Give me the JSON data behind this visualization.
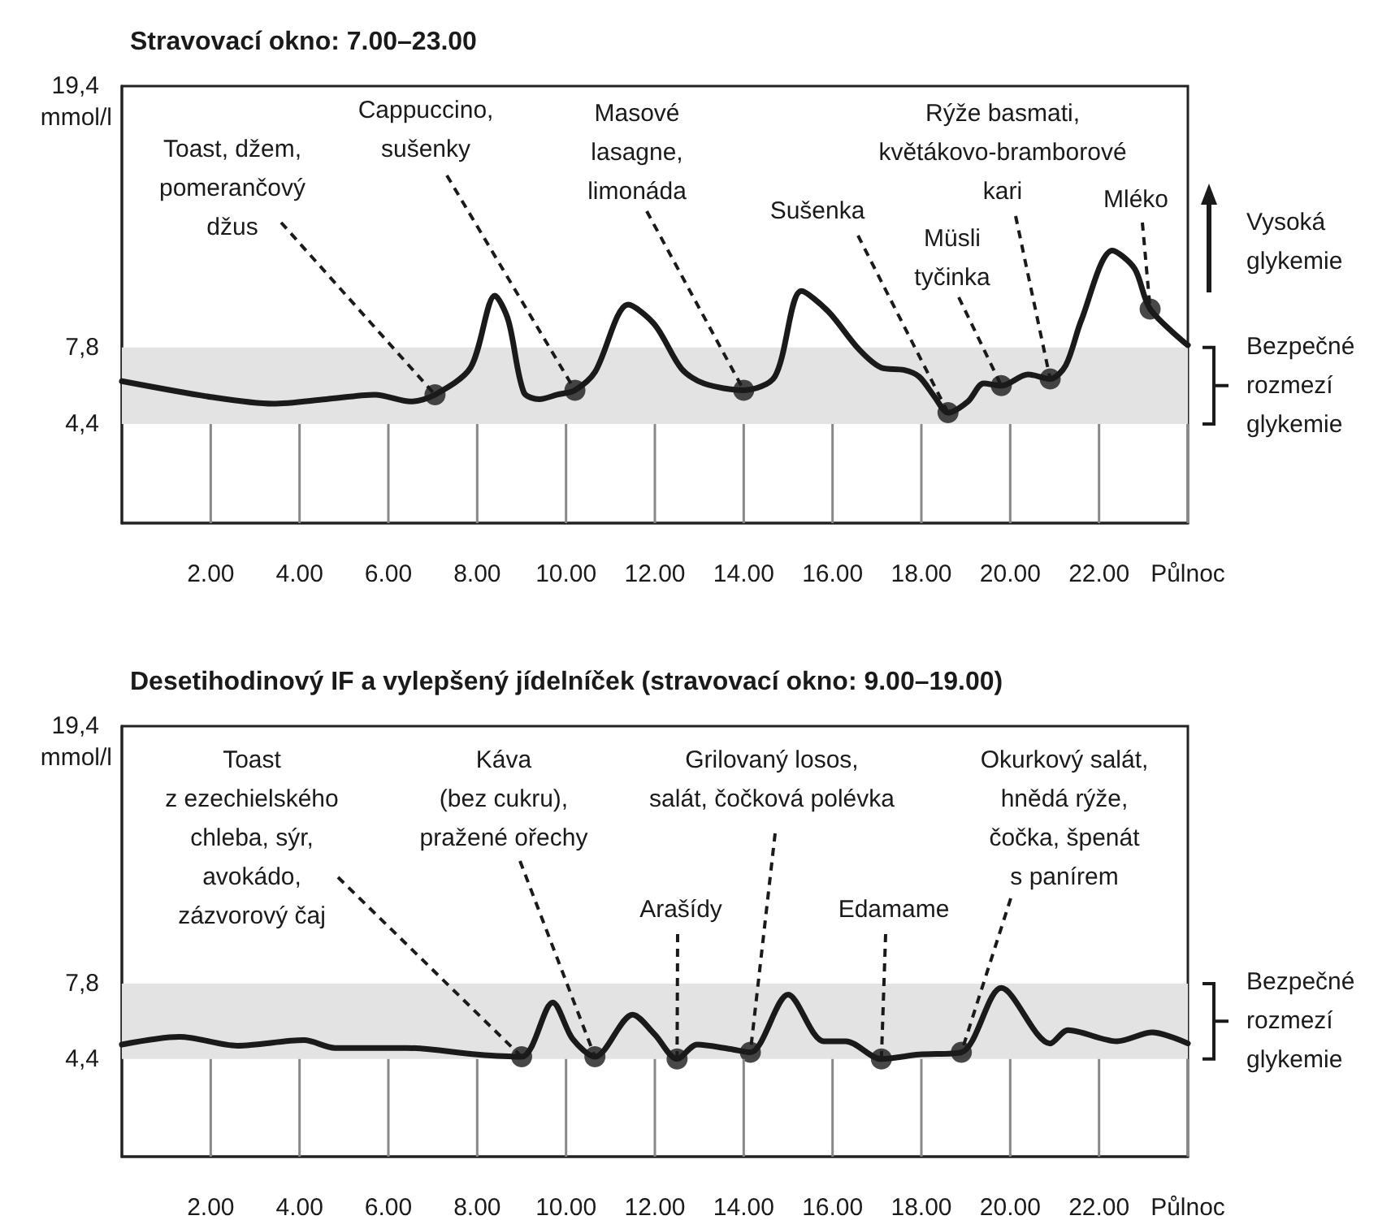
{
  "chart_data": [
    {
      "type": "line",
      "title": "Stravovací okno: 7.00–23.00",
      "ylabel": "mmol/l",
      "xlim": [
        0,
        24
      ],
      "xticks": [
        {
          "value": 2,
          "label": "2.00"
        },
        {
          "value": 4,
          "label": "4.00"
        },
        {
          "value": 6,
          "label": "6.00"
        },
        {
          "value": 8,
          "label": "8.00"
        },
        {
          "value": 10,
          "label": "10.00"
        },
        {
          "value": 12,
          "label": "12.00"
        },
        {
          "value": 14,
          "label": "14.00"
        },
        {
          "value": 16,
          "label": "16.00"
        },
        {
          "value": 18,
          "label": "18.00"
        },
        {
          "value": 20,
          "label": "20.00"
        },
        {
          "value": 22,
          "label": "22.00"
        },
        {
          "value": 24,
          "label": "Půlnoc"
        }
      ],
      "ylim": [
        0,
        19.4
      ],
      "yticks": [
        {
          "value": 4.4,
          "label": "4,4"
        },
        {
          "value": 7.8,
          "label": "7,8"
        },
        {
          "value": 19.4,
          "label": "19,4"
        }
      ],
      "line_style": "solid",
      "bands": [
        {
          "axis": "y",
          "from": 4.4,
          "to": 7.8,
          "label": "Bezpečné\nrozmezí\nglykemie",
          "color": "#e3e3e3"
        }
      ],
      "annotations": [
        {
          "text": "Toast, džem,\npomerančový\ndžus",
          "x": 7.05,
          "y": 5.7
        },
        {
          "text": "Cappuccino,\nsušenky",
          "x": 10.2,
          "y": 5.9
        },
        {
          "text": "Masové\nlasagne,\nlimonáda",
          "x": 14.0,
          "y": 5.9
        },
        {
          "text": "Sušenka",
          "x": 18.6,
          "y": 4.9
        },
        {
          "text": "Müsli\ntyčinka",
          "x": 19.8,
          "y": 6.1
        },
        {
          "text": "Rýže basmati,\nkvětákovo-bramborové\nkari",
          "x": 20.9,
          "y": 6.4
        },
        {
          "text": "Mléko",
          "x": 23.15,
          "y": 9.5
        },
        "Vysoká\nglykemie"
      ],
      "series": [
        {
          "marker": "none",
          "color": "#1a1a1a",
          "x": [
            0,
            2,
            3.4,
            4.6,
            5.7,
            6.5,
            7.05,
            7.85,
            8.4,
            8.7,
            9.05,
            9.4,
            9.8,
            10.2,
            10.65,
            11.4,
            12.0,
            12.6,
            13.1,
            14.0,
            14.7,
            15.3,
            15.9,
            16.6,
            17.1,
            17.6,
            17.95,
            18.3,
            18.6,
            19.05,
            19.4,
            19.8,
            20.4,
            20.9,
            21.25,
            21.6,
            22.3,
            22.8,
            23.15,
            24
          ],
          "values": [
            6.3,
            5.6,
            5.3,
            5.5,
            5.7,
            5.4,
            5.7,
            6.9,
            10.1,
            9.0,
            5.8,
            5.5,
            5.7,
            5.9,
            6.7,
            9.7,
            8.8,
            6.85,
            6.2,
            5.9,
            6.5,
            10.3,
            9.4,
            7.7,
            6.9,
            6.8,
            6.5,
            5.6,
            4.9,
            5.4,
            6.2,
            6.1,
            6.6,
            6.4,
            7.0,
            9.0,
            12.1,
            11.3,
            9.5,
            7.9
          ]
        },
        {
          "type": "scatter",
          "marker": "circle",
          "color": "#1a1a1a",
          "x": [
            7.05,
            10.2,
            14.0,
            18.6,
            19.8,
            20.9,
            23.15
          ],
          "values": [
            5.7,
            5.9,
            5.9,
            4.9,
            6.1,
            6.4,
            9.5
          ]
        }
      ]
    },
    {
      "type": "line",
      "title": "Desetihodinový IF a vylepšený jídelníček (stravovací okno: 9.00–19.00)",
      "ylabel": "mmol/l",
      "xlim": [
        0,
        24
      ],
      "xticks": [
        {
          "value": 2,
          "label": "2.00"
        },
        {
          "value": 4,
          "label": "4.00"
        },
        {
          "value": 6,
          "label": "6.00"
        },
        {
          "value": 8,
          "label": "8.00"
        },
        {
          "value": 10,
          "label": "10.00"
        },
        {
          "value": 12,
          "label": "12.00"
        },
        {
          "value": 14,
          "label": "14.00"
        },
        {
          "value": 16,
          "label": "16.00"
        },
        {
          "value": 18,
          "label": "18.00"
        },
        {
          "value": 20,
          "label": "20.00"
        },
        {
          "value": 22,
          "label": "22.00"
        },
        {
          "value": 24,
          "label": "Půlnoc"
        }
      ],
      "ylim": [
        0,
        19.4
      ],
      "yticks": [
        {
          "value": 4.4,
          "label": "4,4"
        },
        {
          "value": 7.8,
          "label": "7,8"
        },
        {
          "value": 19.4,
          "label": "19,4"
        }
      ],
      "line_style": "solid",
      "bands": [
        {
          "axis": "y",
          "from": 4.4,
          "to": 7.8,
          "label": "Bezpečné\nrozmezí\nglykemie",
          "color": "#e3e3e3"
        }
      ],
      "annotations": [
        {
          "text": "Toast\nz ezechielského\nchleba, sýr,\navokádo,\nzázvorový čaj",
          "x": 9.0,
          "y": 4.5
        },
        {
          "text": "Káva\n(bez cukru),\npražené ořechy",
          "x": 10.65,
          "y": 4.5
        },
        {
          "text": "Grilovaný losos,\nsalát, čočková polévka",
          "x": 14.15,
          "y": 4.7
        },
        {
          "text": "Arašídy",
          "x": 12.5,
          "y": 4.4
        },
        {
          "text": "Edamame",
          "x": 17.1,
          "y": 4.4
        },
        {
          "text": "Okurkový salát,\nhnědá rýže,\nčočka, špenát\ns panírem",
          "x": 18.9,
          "y": 4.7
        }
      ],
      "series": [
        {
          "marker": "none",
          "color": "#1a1a1a",
          "x": [
            0,
            1.3,
            2.6,
            4.1,
            4.8,
            6.4,
            8.0,
            9.0,
            9.7,
            10.15,
            10.65,
            11.5,
            12.0,
            12.5,
            12.95,
            13.7,
            14.15,
            15.0,
            15.8,
            16.3,
            17.1,
            17.95,
            18.9,
            19.8,
            20.9,
            21.3,
            22.4,
            23.2,
            24
          ],
          "values": [
            5.05,
            5.4,
            5.0,
            5.25,
            4.9,
            4.9,
            4.6,
            4.5,
            6.95,
            5.3,
            4.5,
            6.4,
            5.5,
            4.4,
            5.05,
            4.85,
            4.7,
            7.3,
            5.2,
            5.2,
            4.4,
            4.6,
            4.7,
            7.6,
            5.1,
            5.7,
            5.2,
            5.6,
            5.1
          ]
        },
        {
          "type": "scatter",
          "marker": "circle",
          "color": "#1a1a1a",
          "x": [
            9.0,
            10.65,
            12.5,
            14.15,
            17.1,
            18.9
          ],
          "values": [
            4.5,
            4.5,
            4.4,
            4.7,
            4.4,
            4.7
          ]
        }
      ]
    }
  ]
}
